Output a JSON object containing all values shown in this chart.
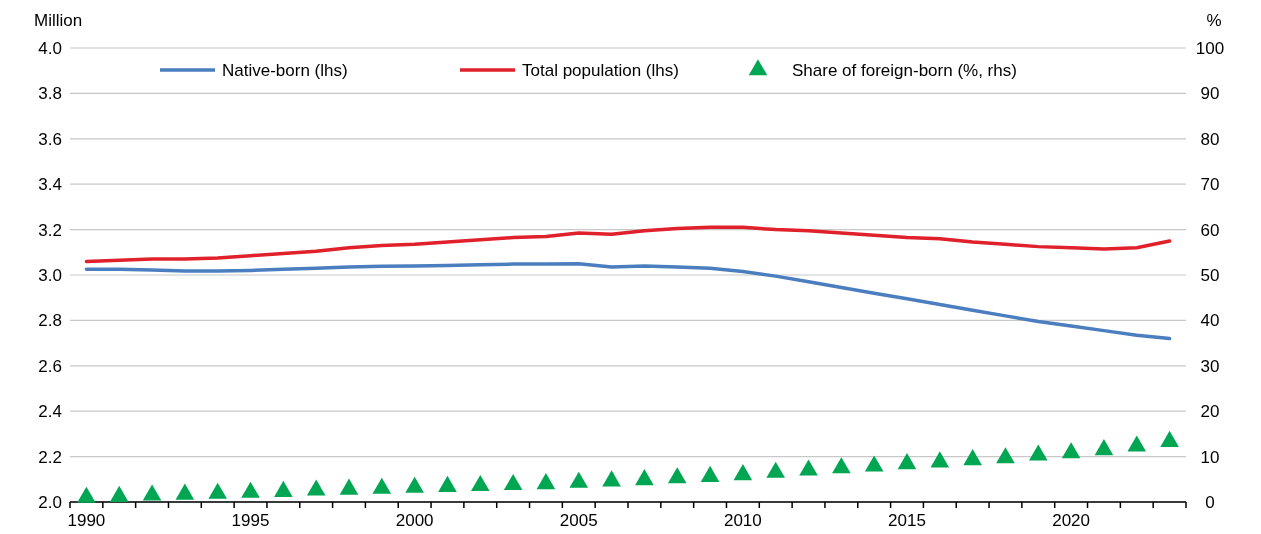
{
  "chart_data": {
    "type": "line",
    "ylabel": "Million",
    "y2label": "%",
    "categories": [
      "1990",
      null,
      null,
      null,
      null,
      "1995",
      null,
      null,
      null,
      null,
      "2000",
      null,
      null,
      null,
      null,
      "2005",
      null,
      null,
      null,
      null,
      "2010",
      null,
      null,
      null,
      null,
      "2015",
      null,
      null,
      null,
      null,
      "2020",
      null,
      null,
      null
    ],
    "ylim": [
      2.0,
      4.0
    ],
    "yticks": [
      {
        "value": 2.0,
        "label": "2.0"
      },
      {
        "value": 2.2,
        "label": "2.2"
      },
      {
        "value": 2.4,
        "label": "2.4"
      },
      {
        "value": 2.6,
        "label": "2.6"
      },
      {
        "value": 2.8,
        "label": "2.8"
      },
      {
        "value": 3.0,
        "label": "3.0"
      },
      {
        "value": 3.2,
        "label": "3.2"
      },
      {
        "value": 3.4,
        "label": "3.4"
      },
      {
        "value": 3.6,
        "label": "3.6"
      },
      {
        "value": 3.8,
        "label": "3.8"
      },
      {
        "value": 4.0,
        "label": "4.0"
      }
    ],
    "y2lim": [
      0,
      100
    ],
    "y2ticks": [
      0,
      10,
      20,
      30,
      40,
      50,
      60,
      70,
      80,
      90,
      100
    ],
    "grid": "y",
    "legend": "top",
    "series": [
      {
        "name": "Native-born (lhs)",
        "color": "#4a7ebf",
        "line_style": "solid",
        "values": [
          3.025,
          3.025,
          3.022,
          3.018,
          3.018,
          3.02,
          3.025,
          3.03,
          3.035,
          3.038,
          3.04,
          3.042,
          3.045,
          3.048,
          3.048,
          3.05,
          3.035,
          3.04,
          3.035,
          3.03,
          3.015,
          2.995,
          2.97,
          2.945,
          2.92,
          2.895,
          2.87,
          2.845,
          2.82,
          2.795,
          2.775,
          2.755,
          2.735,
          2.72
        ]
      },
      {
        "name": "Total population (lhs)",
        "color": "#e0202a",
        "line_style": "solid",
        "values": [
          3.06,
          3.065,
          3.07,
          3.07,
          3.075,
          3.085,
          3.095,
          3.105,
          3.12,
          3.13,
          3.135,
          3.145,
          3.155,
          3.165,
          3.17,
          3.185,
          3.18,
          3.195,
          3.205,
          3.21,
          3.21,
          3.2,
          3.195,
          3.185,
          3.175,
          3.165,
          3.16,
          3.145,
          3.135,
          3.125,
          3.12,
          3.115,
          3.12,
          3.15
        ]
      },
      {
        "name": "Share of foreign-born (%, rhs)",
        "type": "scatter",
        "axis": "y2",
        "marker": "triangle",
        "color": "#00a651",
        "values": [
          1.0,
          1.2,
          1.5,
          1.7,
          1.9,
          2.1,
          2.3,
          2.6,
          2.8,
          3.0,
          3.2,
          3.4,
          3.6,
          3.8,
          4.0,
          4.3,
          4.6,
          4.9,
          5.3,
          5.6,
          6.0,
          6.5,
          7.0,
          7.5,
          7.9,
          8.4,
          8.8,
          9.3,
          9.7,
          10.3,
          10.8,
          11.5,
          12.3,
          13.3
        ]
      }
    ]
  }
}
